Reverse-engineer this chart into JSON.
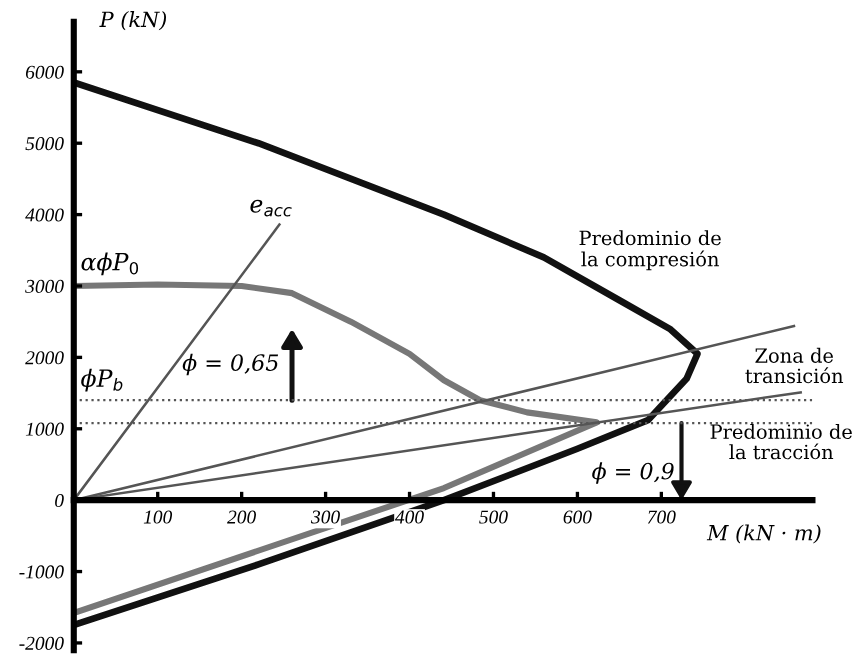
{
  "chart_data": {
    "type": "line",
    "xlabel": "M (kN · m)",
    "ylabel": "P (kN)",
    "xlim": [
      0,
      880
    ],
    "ylim": [
      -2100,
      6700
    ],
    "xticks": [
      100,
      200,
      300,
      400,
      500,
      600,
      700
    ],
    "yticks": [
      -2000,
      -1000,
      0,
      1000,
      2000,
      3000,
      4000,
      5000,
      6000
    ],
    "grid": false,
    "legend": false,
    "marker": "none",
    "line_style": "solid",
    "series": [
      {
        "color": "#111111",
        "x": [
          0,
          220,
          441,
          560,
          650,
          710,
          743,
          730,
          684,
          600,
          441,
          220,
          0
        ],
        "values": [
          5850,
          5000,
          4000,
          3400,
          2800,
          2400,
          2050,
          1700,
          1120,
          720,
          0,
          -900,
          -1750
        ]
      },
      {
        "color": "#777777",
        "x": [
          0,
          100,
          200,
          260,
          330,
          400,
          441,
          484,
          540,
          623,
          441,
          0
        ],
        "values": [
          3000,
          3020,
          3000,
          2900,
          2500,
          2050,
          1680,
          1400,
          1230,
          1090,
          170,
          -1580
        ]
      },
      {
        "color": "#555555",
        "x": [
          0,
          245
        ],
        "values": [
          0,
          3860
        ]
      },
      {
        "color": "#555555",
        "x": [
          0,
          858
        ],
        "values": [
          0,
          2440
        ]
      },
      {
        "color": "#555555",
        "x": [
          0,
          866
        ],
        "values": [
          0,
          1510
        ]
      }
    ],
    "ref_lines": [
      {
        "axis": "y",
        "value": 1400,
        "label": "ϕP$_{b}$",
        "line_style": "dotted",
        "color": "#555555"
      },
      {
        "axis": "y",
        "value": 1080,
        "label": null,
        "line_style": "dotted",
        "color": "#555555"
      }
    ],
    "annotations": [
      {
        "text": "αϕP$_{0}$",
        "x": 0,
        "y": 3000
      },
      {
        "text": "e$_{acc}$",
        "x": 245,
        "y": 3860
      },
      {
        "text": "ϕ = 0,65",
        "x": 260,
        "y": 1400
      },
      {
        "text": "ϕ = 0,9",
        "x": 724,
        "y": 1080
      },
      "Predominio de\nla compresión",
      "Zona de\ntransición",
      "Predominio de\nla tracción"
    ]
  }
}
